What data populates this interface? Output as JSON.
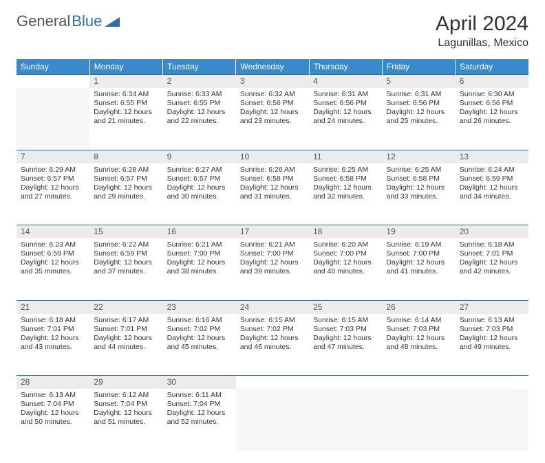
{
  "logo": {
    "part1": "General",
    "part2": "Blue"
  },
  "title": "April 2024",
  "location": "Lagunillas, Mexico",
  "brand_color": "#3a8ac9",
  "accent_color": "#2e6fab",
  "daynum_bg": "#ececec",
  "empty_cell_bg": "#f7f7f7",
  "text_color": "#333333",
  "day_headers": [
    "Sunday",
    "Monday",
    "Tuesday",
    "Wednesday",
    "Thursday",
    "Friday",
    "Saturday"
  ],
  "weeks": [
    [
      null,
      {
        "n": "1",
        "sr": "Sunrise: 6:34 AM",
        "ss": "Sunset: 6:55 PM",
        "d1": "Daylight: 12 hours",
        "d2": "and 21 minutes."
      },
      {
        "n": "2",
        "sr": "Sunrise: 6:33 AM",
        "ss": "Sunset: 6:55 PM",
        "d1": "Daylight: 12 hours",
        "d2": "and 22 minutes."
      },
      {
        "n": "3",
        "sr": "Sunrise: 6:32 AM",
        "ss": "Sunset: 6:56 PM",
        "d1": "Daylight: 12 hours",
        "d2": "and 23 minutes."
      },
      {
        "n": "4",
        "sr": "Sunrise: 6:31 AM",
        "ss": "Sunset: 6:56 PM",
        "d1": "Daylight: 12 hours",
        "d2": "and 24 minutes."
      },
      {
        "n": "5",
        "sr": "Sunrise: 6:31 AM",
        "ss": "Sunset: 6:56 PM",
        "d1": "Daylight: 12 hours",
        "d2": "and 25 minutes."
      },
      {
        "n": "6",
        "sr": "Sunrise: 6:30 AM",
        "ss": "Sunset: 6:56 PM",
        "d1": "Daylight: 12 hours",
        "d2": "and 26 minutes."
      }
    ],
    [
      {
        "n": "7",
        "sr": "Sunrise: 6:29 AM",
        "ss": "Sunset: 6:57 PM",
        "d1": "Daylight: 12 hours",
        "d2": "and 27 minutes."
      },
      {
        "n": "8",
        "sr": "Sunrise: 6:28 AM",
        "ss": "Sunset: 6:57 PM",
        "d1": "Daylight: 12 hours",
        "d2": "and 29 minutes."
      },
      {
        "n": "9",
        "sr": "Sunrise: 6:27 AM",
        "ss": "Sunset: 6:57 PM",
        "d1": "Daylight: 12 hours",
        "d2": "and 30 minutes."
      },
      {
        "n": "10",
        "sr": "Sunrise: 6:26 AM",
        "ss": "Sunset: 6:58 PM",
        "d1": "Daylight: 12 hours",
        "d2": "and 31 minutes."
      },
      {
        "n": "11",
        "sr": "Sunrise: 6:25 AM",
        "ss": "Sunset: 6:58 PM",
        "d1": "Daylight: 12 hours",
        "d2": "and 32 minutes."
      },
      {
        "n": "12",
        "sr": "Sunrise: 6:25 AM",
        "ss": "Sunset: 6:58 PM",
        "d1": "Daylight: 12 hours",
        "d2": "and 33 minutes."
      },
      {
        "n": "13",
        "sr": "Sunrise: 6:24 AM",
        "ss": "Sunset: 6:59 PM",
        "d1": "Daylight: 12 hours",
        "d2": "and 34 minutes."
      }
    ],
    [
      {
        "n": "14",
        "sr": "Sunrise: 6:23 AM",
        "ss": "Sunset: 6:59 PM",
        "d1": "Daylight: 12 hours",
        "d2": "and 35 minutes."
      },
      {
        "n": "15",
        "sr": "Sunrise: 6:22 AM",
        "ss": "Sunset: 6:59 PM",
        "d1": "Daylight: 12 hours",
        "d2": "and 37 minutes."
      },
      {
        "n": "16",
        "sr": "Sunrise: 6:21 AM",
        "ss": "Sunset: 7:00 PM",
        "d1": "Daylight: 12 hours",
        "d2": "and 38 minutes."
      },
      {
        "n": "17",
        "sr": "Sunrise: 6:21 AM",
        "ss": "Sunset: 7:00 PM",
        "d1": "Daylight: 12 hours",
        "d2": "and 39 minutes."
      },
      {
        "n": "18",
        "sr": "Sunrise: 6:20 AM",
        "ss": "Sunset: 7:00 PM",
        "d1": "Daylight: 12 hours",
        "d2": "and 40 minutes."
      },
      {
        "n": "19",
        "sr": "Sunrise: 6:19 AM",
        "ss": "Sunset: 7:00 PM",
        "d1": "Daylight: 12 hours",
        "d2": "and 41 minutes."
      },
      {
        "n": "20",
        "sr": "Sunrise: 6:18 AM",
        "ss": "Sunset: 7:01 PM",
        "d1": "Daylight: 12 hours",
        "d2": "and 42 minutes."
      }
    ],
    [
      {
        "n": "21",
        "sr": "Sunrise: 6:18 AM",
        "ss": "Sunset: 7:01 PM",
        "d1": "Daylight: 12 hours",
        "d2": "and 43 minutes."
      },
      {
        "n": "22",
        "sr": "Sunrise: 6:17 AM",
        "ss": "Sunset: 7:01 PM",
        "d1": "Daylight: 12 hours",
        "d2": "and 44 minutes."
      },
      {
        "n": "23",
        "sr": "Sunrise: 6:16 AM",
        "ss": "Sunset: 7:02 PM",
        "d1": "Daylight: 12 hours",
        "d2": "and 45 minutes."
      },
      {
        "n": "24",
        "sr": "Sunrise: 6:15 AM",
        "ss": "Sunset: 7:02 PM",
        "d1": "Daylight: 12 hours",
        "d2": "and 46 minutes."
      },
      {
        "n": "25",
        "sr": "Sunrise: 6:15 AM",
        "ss": "Sunset: 7:03 PM",
        "d1": "Daylight: 12 hours",
        "d2": "and 47 minutes."
      },
      {
        "n": "26",
        "sr": "Sunrise: 6:14 AM",
        "ss": "Sunset: 7:03 PM",
        "d1": "Daylight: 12 hours",
        "d2": "and 48 minutes."
      },
      {
        "n": "27",
        "sr": "Sunrise: 6:13 AM",
        "ss": "Sunset: 7:03 PM",
        "d1": "Daylight: 12 hours",
        "d2": "and 49 minutes."
      }
    ],
    [
      {
        "n": "28",
        "sr": "Sunrise: 6:13 AM",
        "ss": "Sunset: 7:04 PM",
        "d1": "Daylight: 12 hours",
        "d2": "and 50 minutes."
      },
      {
        "n": "29",
        "sr": "Sunrise: 6:12 AM",
        "ss": "Sunset: 7:04 PM",
        "d1": "Daylight: 12 hours",
        "d2": "and 51 minutes."
      },
      {
        "n": "30",
        "sr": "Sunrise: 6:11 AM",
        "ss": "Sunset: 7:04 PM",
        "d1": "Daylight: 12 hours",
        "d2": "and 52 minutes."
      },
      null,
      null,
      null,
      null
    ]
  ]
}
